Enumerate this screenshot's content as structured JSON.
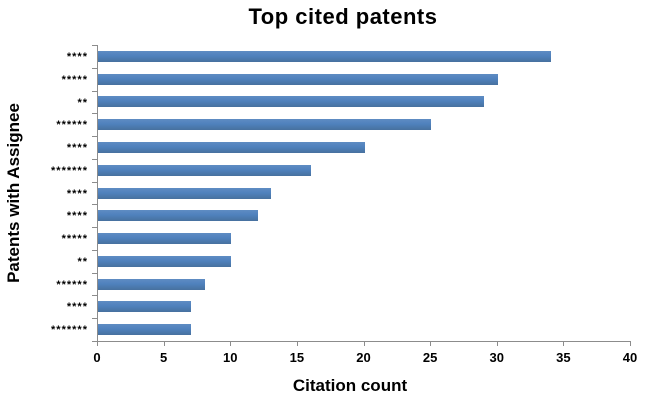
{
  "chart": {
    "title": "Top cited patents",
    "x_axis_title": "Citation count",
    "y_axis_title": "Patents with Assignee"
  },
  "chart_data": {
    "type": "bar",
    "orientation": "horizontal",
    "title": "Top cited patents",
    "xlabel": "Citation count",
    "ylabel": "Patents with Assignee",
    "categories": [
      "****",
      "*****",
      "**",
      "******",
      "****",
      "*******",
      "****",
      "****",
      "*****",
      "**",
      "******",
      "****",
      "*******"
    ],
    "values": [
      34,
      30,
      29,
      25,
      20,
      16,
      13,
      12,
      10,
      10,
      8,
      7,
      7
    ],
    "xlim": [
      0,
      40
    ],
    "xticks": [
      0,
      5,
      10,
      15,
      20,
      25,
      30,
      35,
      40
    ],
    "grid": false,
    "legend": "none",
    "bar_color": "#4f81bd",
    "axis_color": "#8c8c8c",
    "text_color": "#000000",
    "background_color": "#ffffff"
  }
}
